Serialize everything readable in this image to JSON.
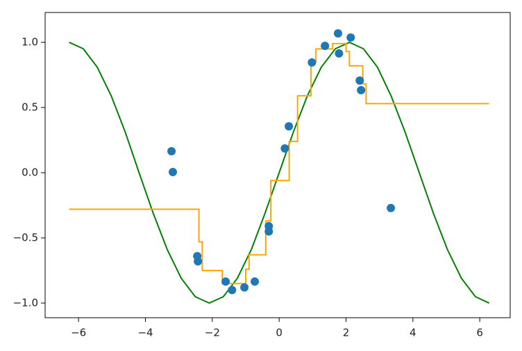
{
  "chart_data": {
    "type": "combo",
    "xlim": [
      -7.0,
      6.91
    ],
    "ylim": [
      -1.112,
      1.229
    ],
    "xticks": [
      {
        "value": -6,
        "label": "−6"
      },
      {
        "value": -4,
        "label": "−4"
      },
      {
        "value": -2,
        "label": "−2"
      },
      0,
      2,
      4,
      6
    ],
    "yticks": [
      {
        "value": -1.0,
        "label": "−1.0"
      },
      {
        "value": -0.5,
        "label": "−0.5"
      },
      {
        "value": 0.0,
        "label": "0.0"
      },
      {
        "value": 0.5,
        "label": "0.5"
      },
      {
        "value": 1.0,
        "label": "1.0"
      }
    ],
    "series": [
      {
        "kind": "line",
        "color": "#008000",
        "x": [
          -6.28,
          -5.86,
          -5.44,
          -5.02,
          -4.6,
          -4.19,
          -3.77,
          -3.35,
          -2.93,
          -2.51,
          -2.09,
          -1.67,
          -1.25,
          -0.83,
          -0.42,
          0.0,
          0.42,
          0.84,
          1.26,
          1.68,
          2.1,
          2.52,
          2.94,
          3.35,
          3.77,
          4.19,
          4.61,
          5.03,
          5.45,
          5.87,
          6.28
        ],
        "values": [
          1,
          0.951,
          0.809,
          0.588,
          0.309,
          0,
          -0.309,
          -0.588,
          -0.809,
          -0.951,
          -1,
          -0.951,
          -0.809,
          -0.588,
          -0.309,
          0,
          0.309,
          0.588,
          0.809,
          0.951,
          1,
          0.951,
          0.809,
          0.588,
          0.309,
          0,
          -0.309,
          -0.588,
          -0.809,
          -0.951,
          -1
        ]
      },
      {
        "kind": "steps",
        "color": "#ffa500",
        "x": [
          -6.28,
          -2.4,
          -2.3,
          -1.7,
          -1.0,
          -0.9,
          -0.4,
          -0.25,
          0.3,
          0.55,
          0.95,
          1.1,
          1.6,
          2.0,
          2.1,
          2.5,
          2.6,
          6.28
        ],
        "values": [
          -0.28,
          -0.53,
          -0.75,
          -0.85,
          -0.74,
          -0.63,
          -0.37,
          -0.06,
          0.24,
          0.59,
          0.85,
          0.95,
          0.99,
          0.93,
          0.82,
          0.68,
          0.53,
          0.53
        ]
      },
      {
        "kind": "scatter",
        "color": "#1f77b4",
        "x": [
          -3.22,
          -3.18,
          -2.45,
          -2.43,
          -1.6,
          -1.41,
          -1.04,
          -0.73,
          -0.31,
          -0.31,
          0.17,
          0.29,
          0.98,
          1.37,
          1.76,
          1.79,
          2.14,
          2.41,
          2.45,
          3.34
        ],
        "values": [
          0.165,
          0.005,
          -0.64,
          -0.68,
          -0.835,
          -0.9,
          -0.88,
          -0.835,
          -0.41,
          -0.45,
          0.186,
          0.356,
          0.846,
          0.973,
          1.069,
          0.915,
          1.037,
          0.707,
          0.633,
          -0.271
        ]
      }
    ]
  }
}
